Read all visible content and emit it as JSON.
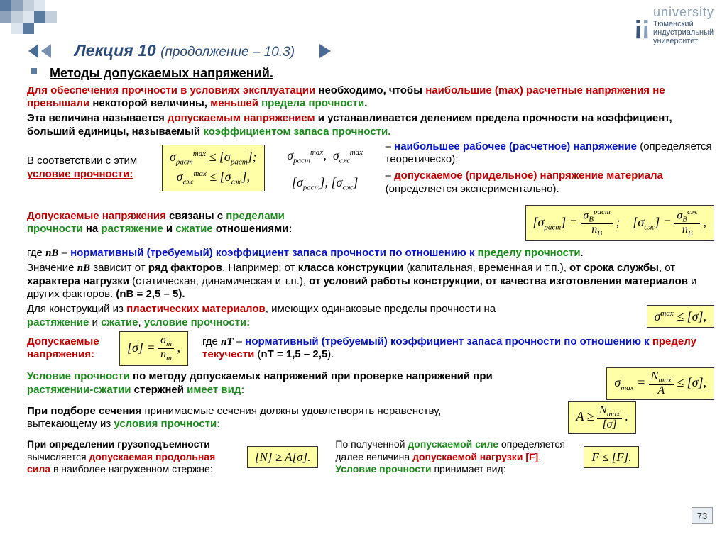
{
  "colors": {
    "red": "#c20000",
    "green": "#1a8a1a",
    "blue": "#0516c2",
    "boxBg": "#ffffa8",
    "navBlue": "#4a6b95",
    "titleBlue": "#2a4a7a"
  },
  "logo": {
    "word": "university",
    "line1": "Тюменский",
    "line2": "индустриальный",
    "line3": "университет"
  },
  "title": {
    "main": "Лекция 10 ",
    "sub": "(продолжение – 10.3)"
  },
  "slideNumber": "73",
  "headings": {
    "methods": "Методы допускаемых напряжений."
  },
  "text": {
    "intro1a": "Для обеспечения прочности в условиях эксплуатации",
    "intro1b": " необходимо, чтобы ",
    "intro1c": "наибольшие (max) расчетные напряжения ",
    "intro1d": "не превышали ",
    "intro1e": "некоторой величины, ",
    "intro1f": "меньшей ",
    "intro1g": "предела прочности",
    "intro1h": ".",
    "intro2a": "Эта величина называется ",
    "intro2b": "допускаемым напряжением",
    "intro2c": " и устанавливается делением ",
    "intro2d": "предела прочности ",
    "intro2e": "на коэффициент, больший единицы",
    "intro2f": ", называемый ",
    "intro2g": "коэффициентом запаса прочности.",
    "line3a": "В соответствии с этим",
    "line3b": "условие  прочности",
    "legend1a": "– ",
    "legend1b": "наибольшее рабочее (расчетное) напряжение",
    "legend1c": " (определяется теоретическо);",
    "legend2a": "– ",
    "legend2b": "допускаемое (придельное) напряжение материала",
    "legend2c": " (определяется экспериментально).",
    "rel1a": "Допускаемые напряжения",
    "rel1b": " связаны с ",
    "rel1c": "пределами прочности",
    "rel1d": "  на ",
    "rel1e": "растяжение",
    "rel1f": " и ",
    "rel1g": "сжатие",
    "rel1h": " отношениями:",
    "nb1a": "где ",
    "nb1b": "nВ",
    "nb1c": " – ",
    "nb1d": "нормативный (требуемый) коэффициент запаса прочности по отношению к ",
    "nb1e": "пределу прочности",
    "nb1f": ".",
    "nb2a": "Значение ",
    "nb2b": "nВ",
    "nb2c": " зависит от ",
    "nb2d": "ряд факторов",
    "nb2e": ". Например: от ",
    "nb2f": "класса конструкции ",
    "nb2g": "(капитальная, временная и т.п.), ",
    "nb2h": "от срока службы",
    "nb2i": ", от ",
    "nb2j": "характера нагрузки ",
    "nb2k": "(статическая, динамическая и т.п.), ",
    "nb2l": "от условий работы конструкции, от качества изготовления материалов",
    "nb2m": " и других факторов. ",
    "nb2n": "(nВ = 2,5 – 5).",
    "pl1a": "Для конструкций из ",
    "pl1b": "пластических материалов",
    "pl1c": ", имеющих одинаковые пределы прочности на ",
    "pl1d": "растяжение",
    "pl1e": " и ",
    "pl1f": "сжатие",
    "pl1g": ", ",
    "pl1h": "условие прочности:",
    "dn1": "Допускаемые напряжения",
    "dn2": ":",
    "nt1a": "где ",
    "nt1b": "nТ",
    "nt1c": " – ",
    "nt1d": "нормативный (требуемый) коэффициент запаса прочности по  отношению к ",
    "nt1e": "пределу текучести",
    "nt1f": " (",
    "nt1g": "nТ = 1,5 – 2,5",
    "nt1h": ").",
    "cond1a": "Условие прочности",
    "cond1b": " по методу допускаемых напряжений ",
    "cond1c": "при проверке напряжений",
    "cond1d": " при ",
    "cond1e": "растяжении-сжатии",
    "cond1f": " стержней ",
    "cond1g": "имеет вид:",
    "sec1a": "При подборе сечения",
    "sec1b": " принимаемые сечения должны удовлетворять неравенству, вытекающему из ",
    "sec1c": "условия прочности:",
    "load1a": "При определении грузоподъемности",
    "load1b": " вычисляется ",
    "load1c": "допускаемая продольная сила",
    "load1d": " в наиболее нагруженном стержне:",
    "load2a": "По полученной ",
    "load2b": "допускаемой силе",
    "load2c": " определяется далее величина ",
    "load2d": "допускаемой нагрузки [F]",
    "load2e": ".",
    "load3a": "Условие прочности",
    "load3b": " принимает вид:"
  },
  "formulas": {
    "f1_line1": "σ<sub>раст</sub><sup>max</sup> ≤ [σ<sub>раст</sub>];",
    "f1_line2": "σ<sub>сж</sub><sup>max</sup> ≤ [σ<sub>сж</sub>],",
    "f2": "σ<sub>раст</sub><sup>max</sup>,&nbsp;&nbsp;σ<sub>сж</sub><sup>max</sup>",
    "f3": "[σ<sub>раст</sub>], [σ<sub>сж</sub>]",
    "f4_l": "[σ<sub>раст</sub>] = <span class='frac'><span class='num'>σ<sub>В</sub><sup>раст</sup></span><span class='den'><i>n</i><sub>В</sub></span></span> ;",
    "f4_r": "[σ<sub>сж</sub>] = <span class='frac'><span class='num'>σ<sub>В</sub><sup>сж</sup></span><span class='den'><i>n</i><sub>В</sub></span></span> ,",
    "f5": "σ<sup>max</sup> ≤ [σ],",
    "f6": "[σ] = <span class='frac'><span class='num'>σ<sub>т</sub></span><span class='den'><i>n</i><sub>т</sub></span></span> ,",
    "f7": "σ<sub>max</sub> = <span class='frac'><span class='num'><i>N</i><sub>max</sub></span><span class='den'><i>A</i></span></span> ≤ [σ],",
    "f8": "<i>A</i> ≥ <span class='frac'><span class='num'><i>N</i><sub>max</sub></span><span class='den'>[σ]</span></span> .",
    "f9": "[<i>N</i>] ≥ <i>A</i>[σ].",
    "f10": "<i>F</i> ≤ [<i>F</i>]."
  }
}
